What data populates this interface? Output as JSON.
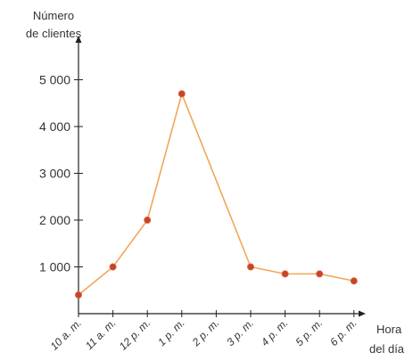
{
  "chart_data": {
    "type": "line",
    "title": "",
    "ylabel_lines": [
      "Número",
      "de clientes"
    ],
    "xlabel_lines": [
      "Hora",
      "del día"
    ],
    "x_categories": [
      "10 a. m.",
      "11 a. m.",
      "12 p. m.",
      "1 p. m.",
      "2 p. m.",
      "3 p. m.",
      "4 p. m.",
      "5 p. m.",
      "6 p. m."
    ],
    "yticks": [
      1000,
      2000,
      3000,
      4000,
      5000
    ],
    "ytick_labels": [
      "1 000",
      "2 000",
      "3 000",
      "4 000",
      "5 000"
    ],
    "ylim": [
      0,
      5500
    ],
    "series": [
      {
        "color": "#f2a65a",
        "marker_color": "#c8432b",
        "points": [
          {
            "x": "10 a. m.",
            "y": 400
          },
          {
            "x": "11 a. m.",
            "y": 1000
          },
          {
            "x": "12 p. m.",
            "y": 2000
          },
          {
            "x": "1 p. m.",
            "y": 4700
          },
          {
            "x": "3 p. m.",
            "y": 1000
          },
          {
            "x": "4 p. m.",
            "y": 850
          },
          {
            "x": "5 p. m.",
            "y": 850
          },
          {
            "x": "6 p. m.",
            "y": 700
          }
        ]
      }
    ],
    "grid": false,
    "axis_color": "#222222"
  }
}
